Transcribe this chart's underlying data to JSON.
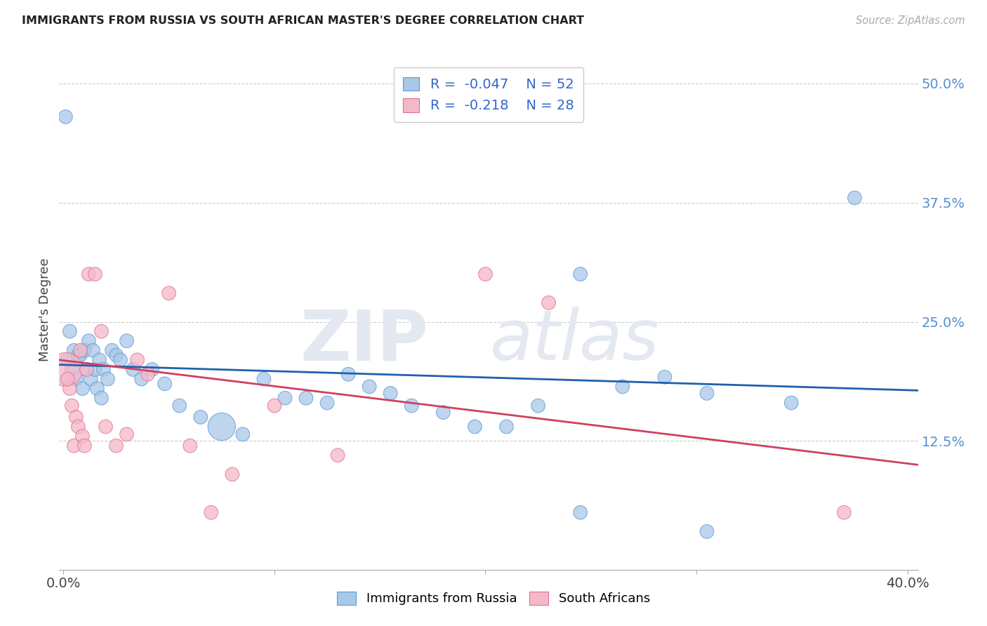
{
  "title": "IMMIGRANTS FROM RUSSIA VS SOUTH AFRICAN MASTER'S DEGREE CORRELATION CHART",
  "source": "Source: ZipAtlas.com",
  "ylabel": "Master's Degree",
  "ytick_values": [
    0.125,
    0.25,
    0.375,
    0.5
  ],
  "ymin": -0.01,
  "ymax": 0.535,
  "xmin": -0.002,
  "xmax": 0.405,
  "R1": -0.047,
  "N1": 52,
  "R2": -0.218,
  "N2": 28,
  "color_blue": "#a8c8e8",
  "color_pink": "#f4b8c8",
  "edge_blue": "#5b9bd5",
  "edge_pink": "#e07090",
  "line_blue": "#2060b0",
  "line_pink": "#d04060",
  "legend1_label": "Immigrants from Russia",
  "legend2_label": "South Africans",
  "blue_points_x": [
    0.001,
    0.002,
    0.003,
    0.004,
    0.005,
    0.006,
    0.007,
    0.008,
    0.009,
    0.01,
    0.011,
    0.012,
    0.013,
    0.014,
    0.015,
    0.016,
    0.017,
    0.018,
    0.019,
    0.021,
    0.023,
    0.025,
    0.027,
    0.03,
    0.033,
    0.037,
    0.042,
    0.048,
    0.055,
    0.065,
    0.075,
    0.085,
    0.095,
    0.105,
    0.115,
    0.125,
    0.135,
    0.145,
    0.155,
    0.165,
    0.18,
    0.195,
    0.21,
    0.225,
    0.245,
    0.265,
    0.285,
    0.305,
    0.345,
    0.375,
    0.245,
    0.305
  ],
  "blue_points_y": [
    0.465,
    0.21,
    0.24,
    0.2,
    0.22,
    0.19,
    0.215,
    0.215,
    0.18,
    0.22,
    0.2,
    0.23,
    0.19,
    0.22,
    0.2,
    0.18,
    0.21,
    0.17,
    0.2,
    0.19,
    0.22,
    0.215,
    0.21,
    0.23,
    0.2,
    0.19,
    0.2,
    0.185,
    0.162,
    0.15,
    0.14,
    0.132,
    0.19,
    0.17,
    0.17,
    0.165,
    0.195,
    0.182,
    0.175,
    0.162,
    0.155,
    0.14,
    0.14,
    0.162,
    0.05,
    0.182,
    0.192,
    0.175,
    0.165,
    0.38,
    0.3,
    0.03
  ],
  "blue_sizes": [
    200,
    200,
    200,
    200,
    200,
    200,
    200,
    200,
    200,
    200,
    200,
    200,
    200,
    200,
    200,
    200,
    200,
    200,
    200,
    200,
    200,
    200,
    200,
    200,
    200,
    200,
    200,
    200,
    200,
    200,
    800,
    200,
    200,
    200,
    200,
    200,
    200,
    200,
    200,
    200,
    200,
    200,
    200,
    200,
    200,
    200,
    200,
    200,
    200,
    200,
    200,
    200
  ],
  "pink_points_x": [
    0.001,
    0.003,
    0.004,
    0.005,
    0.006,
    0.007,
    0.008,
    0.009,
    0.01,
    0.011,
    0.012,
    0.015,
    0.018,
    0.02,
    0.025,
    0.03,
    0.035,
    0.04,
    0.05,
    0.06,
    0.07,
    0.08,
    0.1,
    0.13,
    0.2,
    0.23,
    0.37,
    0.002
  ],
  "pink_points_y": [
    0.2,
    0.18,
    0.162,
    0.12,
    0.15,
    0.14,
    0.22,
    0.13,
    0.12,
    0.2,
    0.3,
    0.3,
    0.24,
    0.14,
    0.12,
    0.132,
    0.21,
    0.195,
    0.28,
    0.12,
    0.05,
    0.09,
    0.162,
    0.11,
    0.3,
    0.27,
    0.05,
    0.19
  ],
  "pink_sizes": [
    1200,
    200,
    200,
    200,
    200,
    200,
    200,
    200,
    200,
    200,
    200,
    200,
    200,
    200,
    200,
    200,
    200,
    200,
    200,
    200,
    200,
    200,
    200,
    200,
    200,
    200,
    200,
    200
  ],
  "blue_line_x0": -0.002,
  "blue_line_x1": 0.405,
  "blue_line_y0": 0.205,
  "blue_line_y1": 0.178,
  "pink_line_x0": -0.002,
  "pink_line_x1": 0.405,
  "pink_line_y0": 0.21,
  "pink_line_y1": 0.1
}
